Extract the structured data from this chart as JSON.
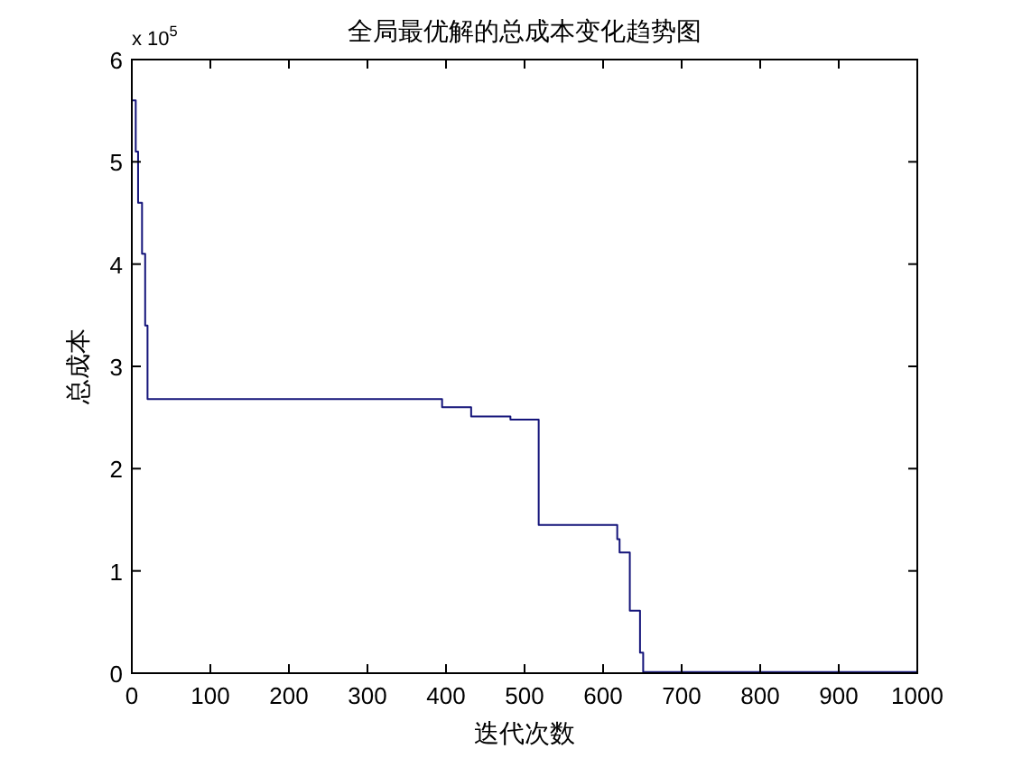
{
  "chart_data": {
    "type": "step",
    "title": "全局最优解的总成本变化趋势图",
    "xlabel": "迭代次数",
    "ylabel": "总成本",
    "annotations": [
      "x 10$^{5}$"
    ],
    "x": [
      1,
      5,
      8,
      13,
      17,
      20,
      395,
      432,
      482,
      518,
      618,
      621,
      634,
      647,
      651,
      1000
    ],
    "values": [
      5.6,
      5.1,
      4.6,
      4.1,
      3.4,
      2.68,
      2.6,
      2.51,
      2.48,
      1.45,
      1.31,
      1.18,
      0.61,
      0.2,
      0.01,
      0.01
    ],
    "color": "#14147a",
    "xlim": [
      0,
      1000
    ],
    "xticks": [
      0,
      100,
      200,
      300,
      400,
      500,
      600,
      700,
      800,
      900,
      1000
    ],
    "ylim": [
      0,
      6
    ],
    "yticks": [
      0,
      1,
      2,
      3,
      4,
      5,
      6
    ],
    "grid": false,
    "marker": "none",
    "line_style": "solid"
  }
}
